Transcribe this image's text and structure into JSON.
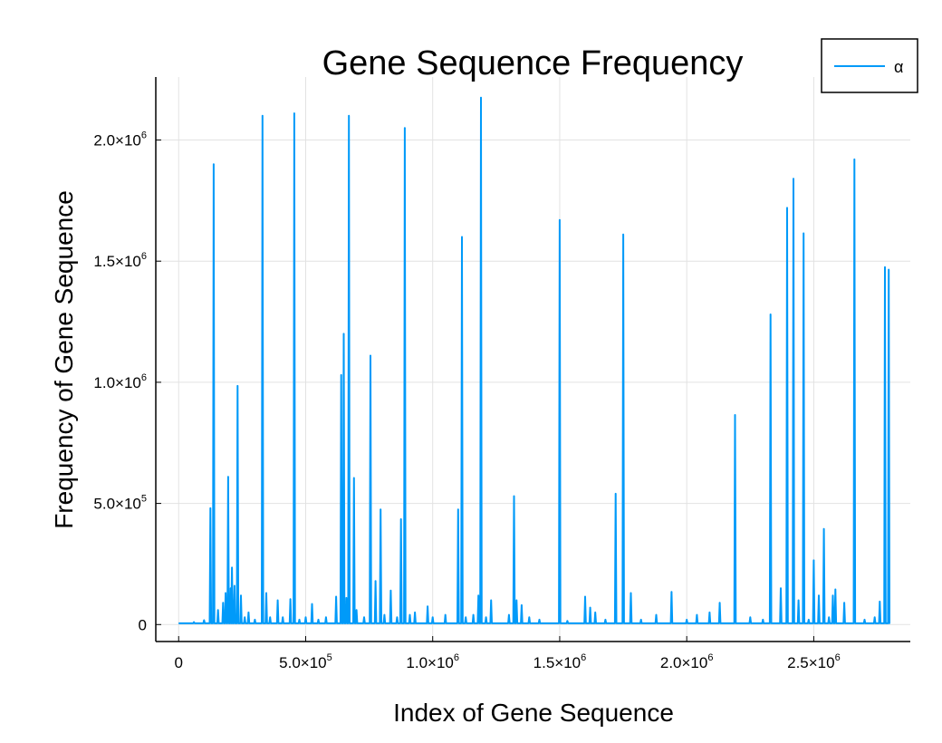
{
  "chart_data": {
    "type": "line",
    "title": "Gene Sequence Frequency",
    "xlabel": "Index of Gene Sequence",
    "ylabel": "Frequency of Gene Sequence",
    "xlim": [
      -90000,
      2880000
    ],
    "ylim": [
      -70000,
      2260000
    ],
    "grid": true,
    "legend_position": "top-right",
    "x_ticks": [
      {
        "value": 0,
        "mant": "0",
        "exp": ""
      },
      {
        "value": 500000,
        "mant": "5.0×10",
        "exp": "5"
      },
      {
        "value": 1000000,
        "mant": "1.0×10",
        "exp": "6"
      },
      {
        "value": 1500000,
        "mant": "1.5×10",
        "exp": "6"
      },
      {
        "value": 2000000,
        "mant": "2.0×10",
        "exp": "6"
      },
      {
        "value": 2500000,
        "mant": "2.5×10",
        "exp": "6"
      }
    ],
    "y_ticks": [
      {
        "value": 0,
        "mant": "0",
        "exp": ""
      },
      {
        "value": 500000,
        "mant": "5.0×10",
        "exp": "5"
      },
      {
        "value": 1000000,
        "mant": "1.0×10",
        "exp": "6"
      },
      {
        "value": 1500000,
        "mant": "1.5×10",
        "exp": "6"
      },
      {
        "value": 2000000,
        "mant": "2.0×10",
        "exp": "6"
      }
    ],
    "series": [
      {
        "name": "α",
        "color": "#009af9",
        "x_range": [
          0,
          2800000
        ],
        "baseline": 5000,
        "spikes": [
          [
            60000,
            10000
          ],
          [
            100000,
            18000
          ],
          [
            125000,
            480000
          ],
          [
            138000,
            1900000
          ],
          [
            155000,
            60000
          ],
          [
            175000,
            90000
          ],
          [
            185000,
            130000
          ],
          [
            195000,
            610000
          ],
          [
            205000,
            150000
          ],
          [
            210000,
            235000
          ],
          [
            220000,
            160000
          ],
          [
            232000,
            985000
          ],
          [
            245000,
            120000
          ],
          [
            260000,
            30000
          ],
          [
            275000,
            50000
          ],
          [
            300000,
            20000
          ],
          [
            330000,
            2100000
          ],
          [
            345000,
            130000
          ],
          [
            360000,
            30000
          ],
          [
            390000,
            100000
          ],
          [
            410000,
            30000
          ],
          [
            440000,
            105000
          ],
          [
            455000,
            2110000
          ],
          [
            475000,
            20000
          ],
          [
            500000,
            30000
          ],
          [
            525000,
            85000
          ],
          [
            550000,
            20000
          ],
          [
            580000,
            30000
          ],
          [
            620000,
            115000
          ],
          [
            640000,
            1030000
          ],
          [
            650000,
            1200000
          ],
          [
            660000,
            110000
          ],
          [
            670000,
            2100000
          ],
          [
            690000,
            605000
          ],
          [
            700000,
            60000
          ],
          [
            730000,
            30000
          ],
          [
            755000,
            1110000
          ],
          [
            775000,
            180000
          ],
          [
            795000,
            475000
          ],
          [
            810000,
            40000
          ],
          [
            835000,
            140000
          ],
          [
            860000,
            30000
          ],
          [
            875000,
            435000
          ],
          [
            890000,
            2050000
          ],
          [
            910000,
            40000
          ],
          [
            930000,
            50000
          ],
          [
            980000,
            75000
          ],
          [
            1000000,
            30000
          ],
          [
            1050000,
            40000
          ],
          [
            1100000,
            475000
          ],
          [
            1115000,
            1600000
          ],
          [
            1130000,
            30000
          ],
          [
            1160000,
            40000
          ],
          [
            1180000,
            120000
          ],
          [
            1190000,
            2175000
          ],
          [
            1210000,
            30000
          ],
          [
            1230000,
            100000
          ],
          [
            1300000,
            40000
          ],
          [
            1320000,
            530000
          ],
          [
            1330000,
            100000
          ],
          [
            1350000,
            80000
          ],
          [
            1380000,
            30000
          ],
          [
            1420000,
            20000
          ],
          [
            1500000,
            1670000
          ],
          [
            1530000,
            15000
          ],
          [
            1600000,
            115000
          ],
          [
            1620000,
            70000
          ],
          [
            1640000,
            50000
          ],
          [
            1680000,
            20000
          ],
          [
            1720000,
            540000
          ],
          [
            1750000,
            1610000
          ],
          [
            1780000,
            130000
          ],
          [
            1820000,
            20000
          ],
          [
            1880000,
            40000
          ],
          [
            1940000,
            135000
          ],
          [
            2000000,
            20000
          ],
          [
            2040000,
            40000
          ],
          [
            2090000,
            50000
          ],
          [
            2130000,
            90000
          ],
          [
            2190000,
            865000
          ],
          [
            2250000,
            30000
          ],
          [
            2300000,
            20000
          ],
          [
            2330000,
            1280000
          ],
          [
            2370000,
            150000
          ],
          [
            2395000,
            1720000
          ],
          [
            2420000,
            1840000
          ],
          [
            2440000,
            100000
          ],
          [
            2460000,
            1615000
          ],
          [
            2480000,
            20000
          ],
          [
            2500000,
            265000
          ],
          [
            2520000,
            120000
          ],
          [
            2540000,
            395000
          ],
          [
            2560000,
            30000
          ],
          [
            2575000,
            120000
          ],
          [
            2585000,
            145000
          ],
          [
            2620000,
            90000
          ],
          [
            2660000,
            1920000
          ],
          [
            2700000,
            20000
          ],
          [
            2740000,
            30000
          ],
          [
            2760000,
            95000
          ],
          [
            2780000,
            1475000
          ],
          [
            2795000,
            1465000
          ]
        ]
      }
    ]
  }
}
